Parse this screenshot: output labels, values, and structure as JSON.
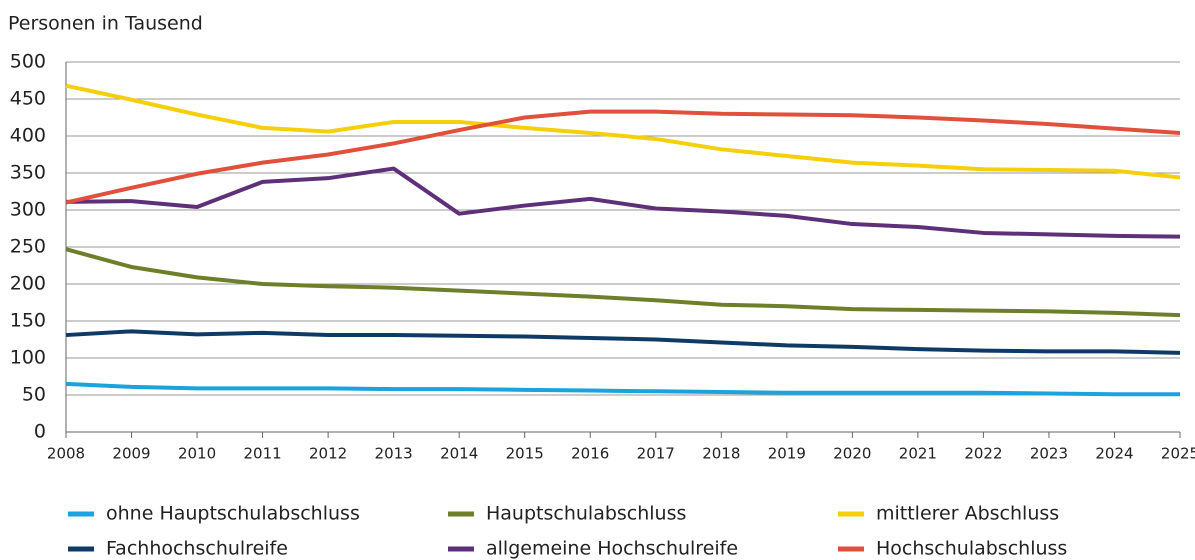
{
  "chart_data": {
    "type": "line",
    "y_label": "Personen in Tausend",
    "x": [
      2008,
      2009,
      2010,
      2011,
      2012,
      2013,
      2014,
      2015,
      2016,
      2017,
      2018,
      2019,
      2020,
      2021,
      2022,
      2023,
      2024,
      2025
    ],
    "xlim": [
      2008,
      2025
    ],
    "xticks": [
      2008,
      2009,
      2010,
      2011,
      2012,
      2013,
      2014,
      2015,
      2016,
      2017,
      2018,
      2019,
      2020,
      2021,
      2022,
      2023,
      2024,
      2025
    ],
    "ylim": [
      0,
      500
    ],
    "yticks": [
      0,
      50,
      100,
      150,
      200,
      250,
      300,
      350,
      400,
      450,
      500
    ],
    "grid": true,
    "series": [
      {
        "name": "ohne Hauptschulabschluss",
        "color": "#1aa3dc",
        "values": [
          65,
          61,
          59,
          59,
          59,
          58,
          58,
          57,
          56,
          55,
          54,
          53,
          53,
          53,
          53,
          52,
          51,
          51
        ]
      },
      {
        "name": "Hauptschulabschluss",
        "color": "#6d7f2a",
        "values": [
          247,
          223,
          209,
          200,
          197,
          195,
          191,
          187,
          183,
          178,
          172,
          170,
          166,
          165,
          164,
          163,
          161,
          158
        ]
      },
      {
        "name": "mittlerer Abschluss",
        "color": "#f5cf0a",
        "values": [
          468,
          449,
          429,
          411,
          406,
          419,
          419,
          411,
          404,
          396,
          382,
          373,
          364,
          360,
          355,
          354,
          353,
          344
        ]
      },
      {
        "name": "Fachhochschulreife",
        "color": "#0f3a66",
        "values": [
          131,
          136,
          132,
          134,
          131,
          131,
          130,
          129,
          127,
          125,
          121,
          117,
          115,
          112,
          110,
          109,
          109,
          107
        ]
      },
      {
        "name": "allgemeine Hochschulreife",
        "color": "#5e3079",
        "values": [
          311,
          312,
          304,
          338,
          343,
          356,
          295,
          306,
          315,
          302,
          298,
          292,
          281,
          277,
          269,
          267,
          265,
          264
        ]
      },
      {
        "name": "Hochschulabschluss",
        "color": "#e0503c",
        "values": [
          310,
          330,
          349,
          364,
          375,
          390,
          408,
          425,
          433,
          433,
          430,
          429,
          428,
          425,
          421,
          416,
          410,
          404
        ]
      }
    ]
  }
}
